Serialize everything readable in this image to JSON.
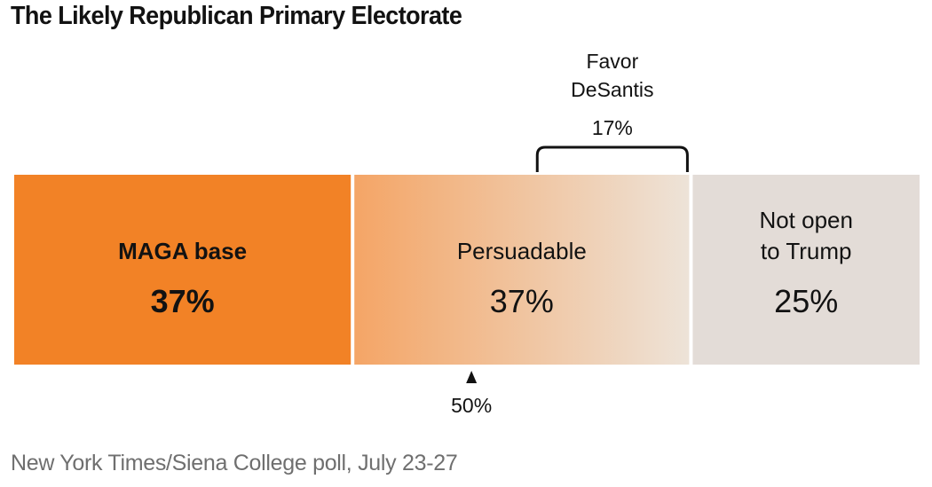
{
  "title": "The Likely Republican Primary Electorate",
  "source": "New York Times/Siena College poll, July 23-27",
  "chart_data": {
    "type": "bar",
    "orientation": "horizontal-stacked",
    "title": "The Likely Republican Primary Electorate",
    "segments": [
      {
        "name": "MAGA base",
        "label_lines": [
          "MAGA base"
        ],
        "value": 37,
        "value_label": "37%",
        "bold": true,
        "color": "#f28226"
      },
      {
        "name": "Persuadable",
        "label_lines": [
          "Persuadable"
        ],
        "value": 37,
        "value_label": "37%",
        "bold": false,
        "gradient": [
          "#f4a566",
          "#ede3d8"
        ]
      },
      {
        "name": "Not open to Trump",
        "label_lines": [
          "Not open",
          "to Trump"
        ],
        "value": 25,
        "value_label": "25%",
        "bold": false,
        "color": "#e3dcd7"
      }
    ],
    "annotations": {
      "bracket": {
        "label_lines": [
          "Favor",
          "DeSantis"
        ],
        "value_label": "17%",
        "value": 17,
        "span": [
          57,
          74
        ]
      },
      "marker": {
        "label": "50%",
        "value": 50
      }
    },
    "xlim": [
      0,
      99
    ],
    "source": "New York Times/Siena College poll, July 23-27"
  }
}
